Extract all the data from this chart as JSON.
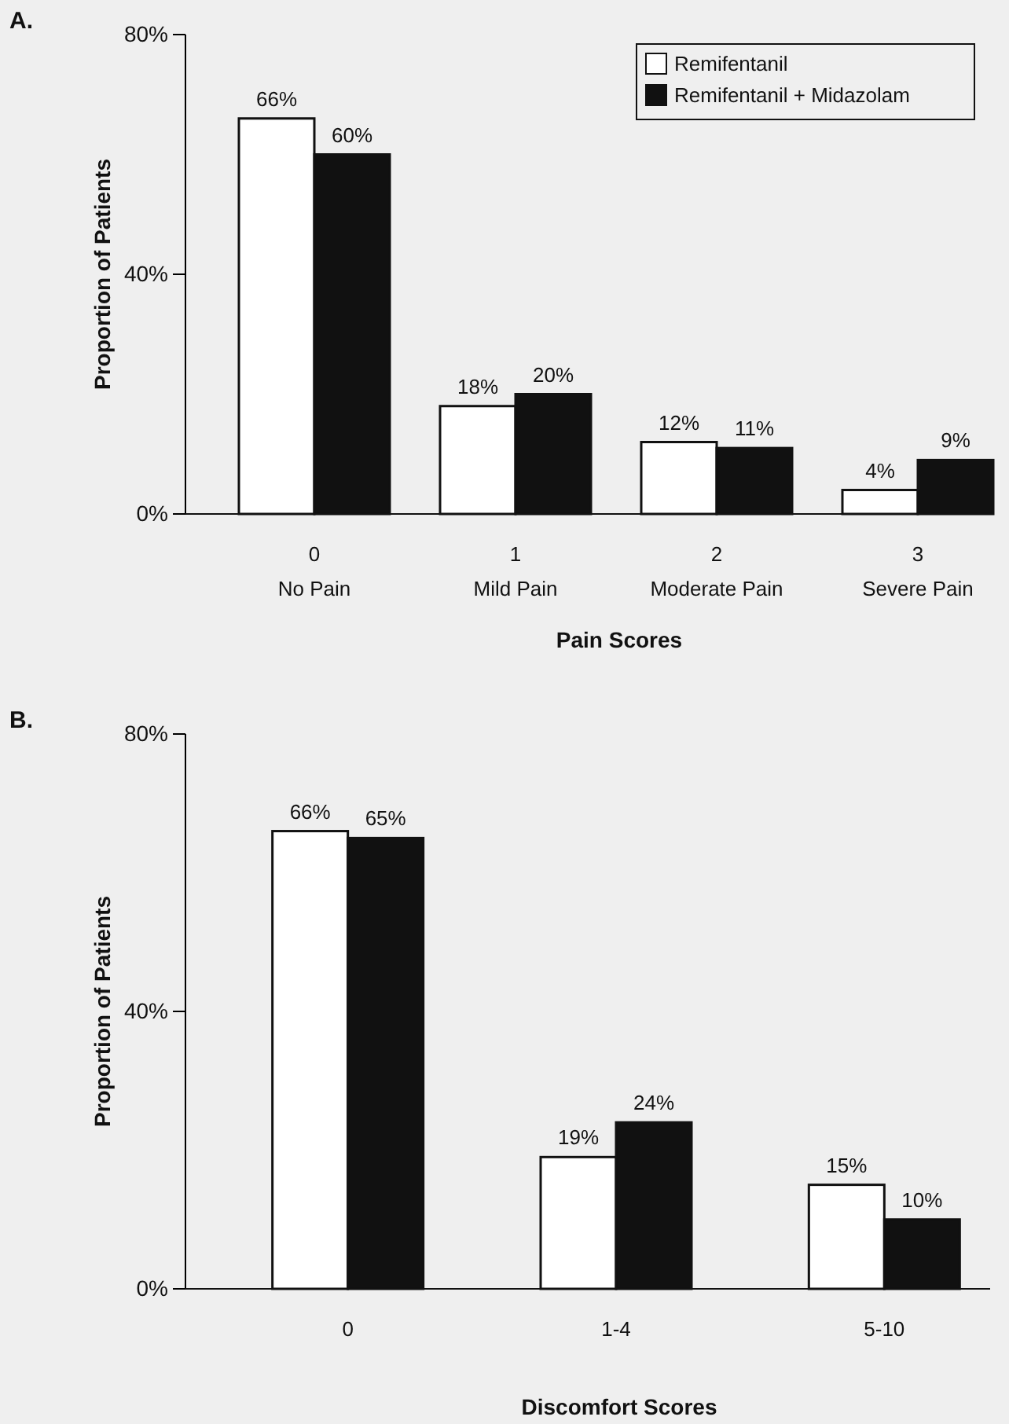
{
  "chart_data": [
    {
      "type": "bar",
      "title": "A.",
      "xlabel": "Pain Scores",
      "ylabel": "Proportion of Patients",
      "categories": [
        "0\nNo Pain",
        "1\nMild Pain",
        "2\nModerate Pain",
        "3\nSevere Pain"
      ],
      "series": [
        {
          "name": "Remifentanil",
          "color": "#ffffff",
          "values": [
            66,
            18,
            12,
            4
          ],
          "value_labels": [
            "66%",
            "18%",
            "12%",
            "4%"
          ]
        },
        {
          "name": "Remifentanil + Midazolam",
          "color": "#111111",
          "values": [
            60,
            20,
            11,
            9
          ],
          "value_labels": [
            "60%",
            "20%",
            "11%",
            "9%"
          ]
        }
      ],
      "ylim": [
        0,
        80
      ],
      "yticks": [
        {
          "value": 0,
          "label": "0%"
        },
        {
          "value": 40,
          "label": "40%"
        },
        {
          "value": 80,
          "label": "80%"
        }
      ],
      "legend": "top right"
    },
    {
      "type": "bar",
      "title": "B.",
      "xlabel": "Discomfort Scores",
      "ylabel": "Proportion of Patients",
      "categories": [
        "0",
        "1-4",
        "5-10"
      ],
      "series": [
        {
          "color": "#ffffff",
          "values": [
            66,
            19,
            15
          ],
          "value_labels": [
            "66%",
            "19%",
            "15%"
          ]
        },
        {
          "color": "#111111",
          "values": [
            65,
            24,
            10
          ],
          "value_labels": [
            "65%",
            "24%",
            "10%"
          ]
        }
      ],
      "ylim": [
        0,
        80
      ],
      "yticks": [
        {
          "value": 0,
          "label": "0%"
        },
        {
          "value": 40,
          "label": "40%"
        },
        {
          "value": 80,
          "label": "80%"
        }
      ]
    }
  ]
}
